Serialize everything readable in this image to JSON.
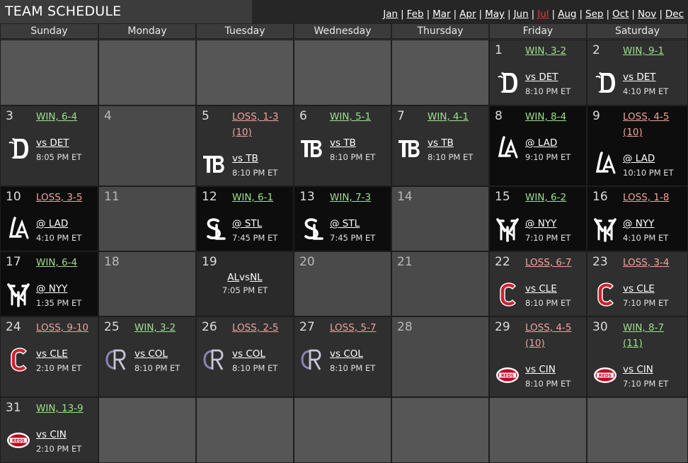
{
  "title": "TEAM SCHEDULE",
  "months": [
    "Jan",
    "Feb",
    "Mar",
    "Apr",
    "May",
    "Jun",
    "Jul",
    "Aug",
    "Sep",
    "Oct",
    "Nov",
    "Dec"
  ],
  "current_month": "Jul",
  "weekdays": [
    "Sunday",
    "Monday",
    "Tuesday",
    "Wednesday",
    "Thursday",
    "Friday",
    "Saturday"
  ],
  "games": {
    "1": {
      "result": "WIN, 3-2",
      "opp": "vs DET",
      "time": "8:10 PM ET",
      "team": "DET"
    },
    "2": {
      "result": "WIN, 9-1",
      "opp": "vs DET",
      "time": "4:10 PM ET",
      "team": "DET"
    },
    "3": {
      "result": "WIN, 6-4",
      "opp": "vs DET",
      "time": "8:05 PM ET",
      "team": "DET"
    },
    "5": {
      "result": "LOSS, 1-3",
      "extra": "(10)",
      "opp": "vs TB",
      "time": "8:10 PM ET",
      "team": "TB"
    },
    "6": {
      "result": "WIN, 5-1",
      "opp": "vs TB",
      "time": "8:10 PM ET",
      "team": "TB"
    },
    "7": {
      "result": "WIN, 4-1",
      "opp": "vs TB",
      "time": "8:10 PM ET",
      "team": "TB"
    },
    "8": {
      "result": "WIN, 8-4",
      "opp": "@ LAD",
      "time": "9:10 PM ET",
      "team": "LAD"
    },
    "9": {
      "result": "LOSS, 4-5",
      "extra": "(10)",
      "opp": "@ LAD",
      "time": "10:10 PM ET",
      "team": "LAD"
    },
    "10": {
      "result": "LOSS, 3-5",
      "opp": "@ LAD",
      "time": "4:10 PM ET",
      "team": "LAD"
    },
    "12": {
      "result": "WIN, 6-1",
      "opp": "@ STL",
      "time": "7:45 PM ET",
      "team": "STL"
    },
    "13": {
      "result": "WIN, 7-3",
      "opp": "@ STL",
      "time": "7:45 PM ET",
      "team": "STL"
    },
    "15": {
      "result": "WIN, 6-2",
      "opp": "@ NYY",
      "time": "7:10 PM ET",
      "team": "NYY"
    },
    "16": {
      "result": "LOSS, 1-8",
      "opp": "@ NYY",
      "time": "4:10 PM ET",
      "team": "NYY"
    },
    "17": {
      "result": "WIN, 6-4",
      "opp": "@ NYY",
      "time": "1:35 PM ET",
      "team": "NYY"
    },
    "19": {
      "asg_left": "AL",
      "asg_mid": "vs",
      "asg_right": "NL",
      "time": "7:05 PM ET"
    },
    "22": {
      "result": "LOSS, 6-7",
      "opp": "vs CLE",
      "time": "8:10 PM ET",
      "team": "CLE"
    },
    "23": {
      "result": "LOSS, 3-4",
      "opp": "vs CLE",
      "time": "7:10 PM ET",
      "team": "CLE"
    },
    "24": {
      "result": "LOSS, 9-10",
      "opp": "vs CLE",
      "time": "2:10 PM ET",
      "team": "CLE"
    },
    "25": {
      "result": "WIN, 3-2",
      "opp": "vs COL",
      "time": "8:10 PM ET",
      "team": "COL"
    },
    "26": {
      "result": "LOSS, 2-5",
      "opp": "vs COL",
      "time": "8:10 PM ET",
      "team": "COL"
    },
    "27": {
      "result": "LOSS, 5-7",
      "opp": "vs COL",
      "time": "8:10 PM ET",
      "team": "COL"
    },
    "29": {
      "result": "LOSS, 4-5",
      "extra": "(10)",
      "opp": "vs CIN",
      "time": "8:10 PM ET",
      "team": "CIN"
    },
    "30": {
      "result": "WIN, 8-7",
      "extra": "(11)",
      "opp": "vs CIN",
      "time": "7:10 PM ET",
      "team": "CIN"
    },
    "31": {
      "result": "WIN, 13-9",
      "opp": "vs CIN",
      "time": "2:10 PM ET",
      "team": "CIN"
    }
  },
  "logo_text": {
    "CIN": "REDS"
  },
  "colors": {
    "win": "#9de08e",
    "loss": "#f0a39b",
    "current_month": "#e23c3c",
    "home_cell": "#2f2f2f",
    "away_cell": "#0d0d0d",
    "off_cell": "#4a4a4a",
    "empty_cell": "#565656",
    "cle_red": "#d31f2d",
    "cin_red": "#c6011f"
  }
}
